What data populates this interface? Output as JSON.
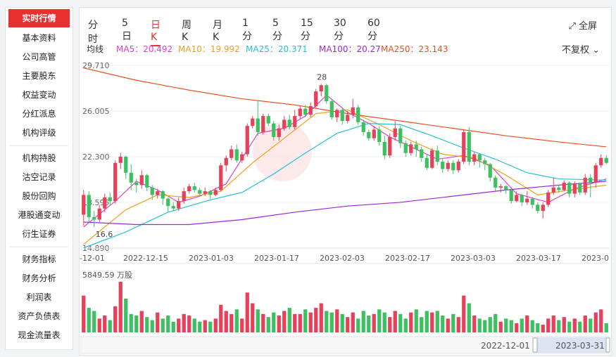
{
  "sidebar": {
    "items": [
      "实时行情",
      "基本资料",
      "公司高管",
      "主要股东",
      "权益变动",
      "分红派息",
      "机构评级",
      "机构持股",
      "沽空记录",
      "股份回购",
      "港股通变动",
      "衍生证券",
      "财务指标",
      "财务分析",
      "利润表",
      "资产负债表",
      "现金流量表"
    ]
  },
  "toolbar": {
    "tabs": [
      "分时",
      "5日",
      "日K",
      "周K",
      "月K",
      "1分",
      "5分",
      "15分",
      "30分",
      "60分"
    ],
    "active_tab": "日K",
    "fullscreen_label": "全屏",
    "adjust_label": "不复权"
  },
  "ma_legend": {
    "title": "均线",
    "items": [
      {
        "label": "MA5：20.492",
        "color": "#e040c8"
      },
      {
        "label": "MA10：19.992",
        "color": "#f0a020"
      },
      {
        "label": "MA25：20.371",
        "color": "#28c0d8"
      },
      {
        "label": "MA100：20.27",
        "color": "#9a28d8"
      },
      {
        "label": "MA250：23.143",
        "color": "#e85020"
      }
    ]
  },
  "colors": {
    "up": "#e8405a",
    "down": "#3cc060",
    "accent": "#e8312e"
  },
  "chart_data": {
    "type": "candlestick",
    "y_ticks": [
      "29.710",
      "26.005",
      "22.300",
      "18.595",
      "14.890"
    ],
    "x_ticks": [
      "-12-01",
      "2022-12-15",
      "2023-01-03",
      "2023-01-17",
      "2023-02-03",
      "2023-02-17",
      "2023-03-03",
      "2023-03-17",
      "2023-0"
    ],
    "ylim": [
      14.89,
      29.71
    ],
    "high_label": "28",
    "low_label": "16.6",
    "candles": [
      [
        17.6,
        19.2,
        16.7,
        19.6
      ],
      [
        19.2,
        17.4,
        16.9,
        19.5
      ],
      [
        17.4,
        17.2,
        16.6,
        17.9
      ],
      [
        17.2,
        18.1,
        17.0,
        18.4
      ],
      [
        18.1,
        19.0,
        17.8,
        19.3
      ],
      [
        19.0,
        18.7,
        18.3,
        19.4
      ],
      [
        18.7,
        21.8,
        18.5,
        22.0
      ],
      [
        21.8,
        22.3,
        21.3,
        22.6
      ],
      [
        22.3,
        21.0,
        20.5,
        22.4
      ],
      [
        21.0,
        20.2,
        19.6,
        21.7
      ],
      [
        20.2,
        20.0,
        19.4,
        20.5
      ],
      [
        20.0,
        20.8,
        19.7,
        21.2
      ],
      [
        20.8,
        19.8,
        19.5,
        20.9
      ],
      [
        19.8,
        19.2,
        18.8,
        20.0
      ],
      [
        19.2,
        19.5,
        18.9,
        19.7
      ],
      [
        19.5,
        18.9,
        18.4,
        19.6
      ],
      [
        18.9,
        18.3,
        17.8,
        19.0
      ],
      [
        18.3,
        18.1,
        17.9,
        18.6
      ],
      [
        18.1,
        18.7,
        17.9,
        19.0
      ],
      [
        18.7,
        19.5,
        18.5,
        19.8
      ],
      [
        19.5,
        19.9,
        19.3,
        20.1
      ],
      [
        19.9,
        19.6,
        19.4,
        20.2
      ],
      [
        19.6,
        19.3,
        19.1,
        19.8
      ],
      [
        19.3,
        19.5,
        19.1,
        19.8
      ],
      [
        19.5,
        19.2,
        18.9,
        19.6
      ],
      [
        19.2,
        19.6,
        19.1,
        19.8
      ],
      [
        19.6,
        21.6,
        19.5,
        21.8
      ],
      [
        21.6,
        22.2,
        21.1,
        22.4
      ],
      [
        22.2,
        22.9,
        22.0,
        23.2
      ],
      [
        22.9,
        22.0,
        21.8,
        23.3
      ],
      [
        22.0,
        22.5,
        21.8,
        22.7
      ],
      [
        22.5,
        24.8,
        22.3,
        25.0
      ],
      [
        24.8,
        25.4,
        24.6,
        25.6
      ],
      [
        25.4,
        24.3,
        24.0,
        26.8
      ],
      [
        24.3,
        25.6,
        24.1,
        25.8
      ],
      [
        25.6,
        25.0,
        24.8,
        25.8
      ],
      [
        25.0,
        23.9,
        23.6,
        25.2
      ],
      [
        23.9,
        24.6,
        23.6,
        24.9
      ],
      [
        24.6,
        25.3,
        24.4,
        25.6
      ],
      [
        25.3,
        24.7,
        24.5,
        25.7
      ],
      [
        24.7,
        25.6,
        24.5,
        26.1
      ],
      [
        25.6,
        26.2,
        25.4,
        26.4
      ],
      [
        26.2,
        25.7,
        25.5,
        26.5
      ],
      [
        25.7,
        26.4,
        25.5,
        26.7
      ],
      [
        26.4,
        27.6,
        26.2,
        27.8
      ],
      [
        27.6,
        28.1,
        27.2,
        28.2
      ],
      [
        28.1,
        26.8,
        26.6,
        28.2
      ],
      [
        26.8,
        25.5,
        25.3,
        27.0
      ],
      [
        25.5,
        26.1,
        25.1,
        26.2
      ],
      [
        26.1,
        25.2,
        24.9,
        26.3
      ],
      [
        25.2,
        25.7,
        25.0,
        26.0
      ],
      [
        25.7,
        26.3,
        25.4,
        27.0
      ],
      [
        26.3,
        25.1,
        24.9,
        26.5
      ],
      [
        25.1,
        24.3,
        24.0,
        25.3
      ],
      [
        24.3,
        23.8,
        23.6,
        24.5
      ],
      [
        23.8,
        24.5,
        23.6,
        24.8
      ],
      [
        24.5,
        23.5,
        23.2,
        24.8
      ],
      [
        23.5,
        22.4,
        22.1,
        24.0
      ],
      [
        22.4,
        23.9,
        22.2,
        24.2
      ],
      [
        23.9,
        24.6,
        23.6,
        25.2
      ],
      [
        24.6,
        23.4,
        23.0,
        24.8
      ],
      [
        23.4,
        22.6,
        22.3,
        23.6
      ],
      [
        22.6,
        23.3,
        22.4,
        23.5
      ],
      [
        23.3,
        22.9,
        22.3,
        23.6
      ],
      [
        22.9,
        22.2,
        21.9,
        23.1
      ],
      [
        22.2,
        21.4,
        21.2,
        22.5
      ],
      [
        21.4,
        22.8,
        21.3,
        23.0
      ],
      [
        22.8,
        21.9,
        21.6,
        23.2
      ],
      [
        21.9,
        21.3,
        21.0,
        22.1
      ],
      [
        21.3,
        21.8,
        21.1,
        22.0
      ],
      [
        21.8,
        21.2,
        20.9,
        22.0
      ],
      [
        21.2,
        21.9,
        21.0,
        22.1
      ],
      [
        21.9,
        24.3,
        21.7,
        24.5
      ],
      [
        24.3,
        21.9,
        21.6,
        24.7
      ],
      [
        21.9,
        22.5,
        21.6,
        22.7
      ],
      [
        22.5,
        22.0,
        21.4,
        22.6
      ],
      [
        22.0,
        21.7,
        21.2,
        22.2
      ],
      [
        21.7,
        20.6,
        20.3,
        21.8
      ],
      [
        20.6,
        19.8,
        19.5,
        20.8
      ],
      [
        19.8,
        19.9,
        19.4,
        20.1
      ],
      [
        19.9,
        19.6,
        19.3,
        20.0
      ],
      [
        19.6,
        18.7,
        18.5,
        19.8
      ],
      [
        18.7,
        19.2,
        18.6,
        19.5
      ],
      [
        19.2,
        18.6,
        18.3,
        19.3
      ],
      [
        18.6,
        18.9,
        18.4,
        19.5
      ],
      [
        18.9,
        18.4,
        18.1,
        19.0
      ],
      [
        18.4,
        17.9,
        17.7,
        18.6
      ],
      [
        17.9,
        18.4,
        17.3,
        18.6
      ],
      [
        18.4,
        19.4,
        18.2,
        19.6
      ],
      [
        19.4,
        19.8,
        19.2,
        20.6
      ],
      [
        19.8,
        19.6,
        19.4,
        20.0
      ],
      [
        19.6,
        20.2,
        19.5,
        20.4
      ],
      [
        20.2,
        19.3,
        19.0,
        20.3
      ],
      [
        19.3,
        20.1,
        19.0,
        20.3
      ],
      [
        20.1,
        19.4,
        19.2,
        20.2
      ],
      [
        19.4,
        20.6,
        19.2,
        20.9
      ],
      [
        20.6,
        20.2,
        19.0,
        20.9
      ],
      [
        20.2,
        21.6,
        19.8,
        21.8
      ],
      [
        21.6,
        22.2,
        21.4,
        22.5
      ],
      [
        22.2,
        21.8,
        21.7,
        22.4
      ]
    ],
    "ma_lines": {
      "MA5": [
        [
          0,
          16.6
        ],
        [
          6,
          18.7
        ],
        [
          10,
          20.3
        ],
        [
          14,
          19.6
        ],
        [
          18,
          18.6
        ],
        [
          22,
          19.1
        ],
        [
          27,
          20.1
        ],
        [
          33,
          24.2
        ],
        [
          38,
          24.6
        ],
        [
          42,
          25.6
        ],
        [
          46,
          27.3
        ],
        [
          50,
          25.9
        ],
        [
          54,
          25.0
        ],
        [
          58,
          23.9
        ],
        [
          62,
          23.1
        ],
        [
          67,
          22.1
        ],
        [
          72,
          22.4
        ],
        [
          77,
          21.6
        ],
        [
          82,
          19.3
        ],
        [
          88,
          18.6
        ],
        [
          93,
          19.7
        ],
        [
          99,
          20.5
        ]
      ],
      "MA10": [
        [
          0,
          15.2
        ],
        [
          8,
          18.0
        ],
        [
          14,
          19.2
        ],
        [
          20,
          19.0
        ],
        [
          26,
          19.5
        ],
        [
          32,
          21.8
        ],
        [
          38,
          23.8
        ],
        [
          44,
          25.8
        ],
        [
          50,
          26.1
        ],
        [
          56,
          24.9
        ],
        [
          62,
          23.6
        ],
        [
          68,
          22.5
        ],
        [
          74,
          22.2
        ],
        [
          80,
          20.8
        ],
        [
          86,
          19.2
        ],
        [
          92,
          19.6
        ],
        [
          99,
          20.0
        ]
      ],
      "MA25": [
        [
          0,
          14.9
        ],
        [
          8,
          16.2
        ],
        [
          16,
          17.8
        ],
        [
          24,
          18.8
        ],
        [
          30,
          19.4
        ],
        [
          36,
          20.9
        ],
        [
          42,
          22.6
        ],
        [
          48,
          24.2
        ],
        [
          54,
          25.0
        ],
        [
          60,
          24.9
        ],
        [
          66,
          24.0
        ],
        [
          72,
          23.0
        ],
        [
          78,
          22.1
        ],
        [
          84,
          21.0
        ],
        [
          90,
          20.5
        ],
        [
          99,
          20.4
        ]
      ],
      "MA100": [
        [
          0,
          17.0
        ],
        [
          10,
          16.8
        ],
        [
          20,
          16.8
        ],
        [
          30,
          17.2
        ],
        [
          40,
          17.8
        ],
        [
          50,
          18.3
        ],
        [
          60,
          18.6
        ],
        [
          70,
          19.1
        ],
        [
          80,
          19.6
        ],
        [
          90,
          20.0
        ],
        [
          99,
          20.3
        ]
      ],
      "MA250": [
        [
          0,
          29.5
        ],
        [
          10,
          28.5
        ],
        [
          20,
          27.7
        ],
        [
          30,
          27.0
        ],
        [
          40,
          26.5
        ],
        [
          50,
          25.8
        ],
        [
          60,
          25.2
        ],
        [
          70,
          24.6
        ],
        [
          80,
          24.0
        ],
        [
          90,
          23.5
        ],
        [
          99,
          23.1
        ]
      ]
    }
  },
  "volume": {
    "label": "5849.59 万股",
    "values": [
      48,
      32,
      28,
      18,
      22,
      16,
      34,
      66,
      44,
      24,
      22,
      28,
      20,
      16,
      26,
      18,
      22,
      14,
      18,
      24,
      22,
      18,
      14,
      16,
      14,
      18,
      36,
      28,
      24,
      30,
      18,
      52,
      38,
      30,
      24,
      20,
      26,
      22,
      28,
      32,
      24,
      24,
      30,
      26,
      32,
      38,
      28,
      26,
      30,
      24,
      20,
      26,
      18,
      28,
      22,
      24,
      30,
      26,
      20,
      28,
      24,
      18,
      26,
      30,
      20,
      28,
      26,
      28,
      22,
      18,
      24,
      20,
      48,
      38,
      22,
      18,
      16,
      20,
      24,
      14,
      18,
      16,
      12,
      18,
      22,
      16,
      12,
      10,
      18,
      22,
      16,
      20,
      14,
      18,
      14,
      22,
      18,
      26,
      30,
      12
    ]
  },
  "navigator": {
    "start_label": "2022-12-01",
    "end_label": "2023-03-31"
  }
}
